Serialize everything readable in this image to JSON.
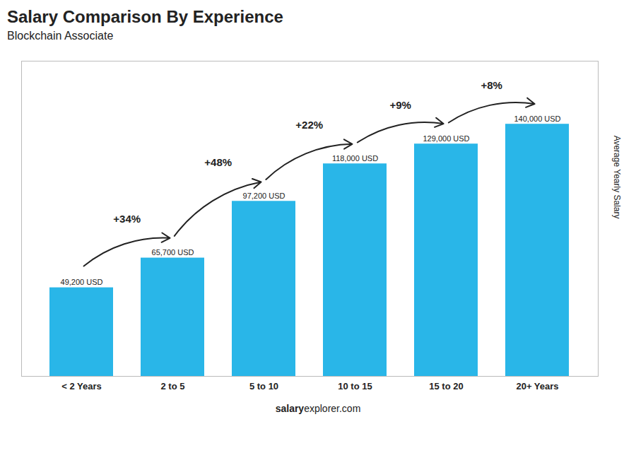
{
  "chart_data": {
    "type": "bar",
    "title": "Salary Comparison By Experience",
    "subtitle": "Blockchain Associate",
    "categories": [
      "< 2 Years",
      "2 to 5",
      "5 to 10",
      "10 to 15",
      "15 to 20",
      "20+ Years"
    ],
    "values": [
      49200,
      65700,
      97200,
      118000,
      129000,
      140000
    ],
    "value_labels": [
      "49,200 USD",
      "65,700 USD",
      "97,200 USD",
      "118,000 USD",
      "129,000 USD",
      "140,000 USD"
    ],
    "data_labels": true,
    "color": "#29b6e8",
    "ylabel": "Average Yearly Salary",
    "ylim": [
      0,
      175000
    ],
    "yticks": [],
    "tick_labels": "x",
    "grid": false,
    "annotations": [
      {
        "text": "+34%",
        "from": "< 2 Years",
        "to": "2 to 5"
      },
      {
        "text": "+48%",
        "from": "2 to 5",
        "to": "5 to 10"
      },
      {
        "text": "+22%",
        "from": "5 to 10",
        "to": "10 to 15"
      },
      {
        "text": "+9%",
        "from": "10 to 15",
        "to": "15 to 20"
      },
      {
        "text": "+8%",
        "from": "15 to 20",
        "to": "20+ Years"
      }
    ],
    "footer": [
      "salary",
      "explorer.com"
    ]
  }
}
